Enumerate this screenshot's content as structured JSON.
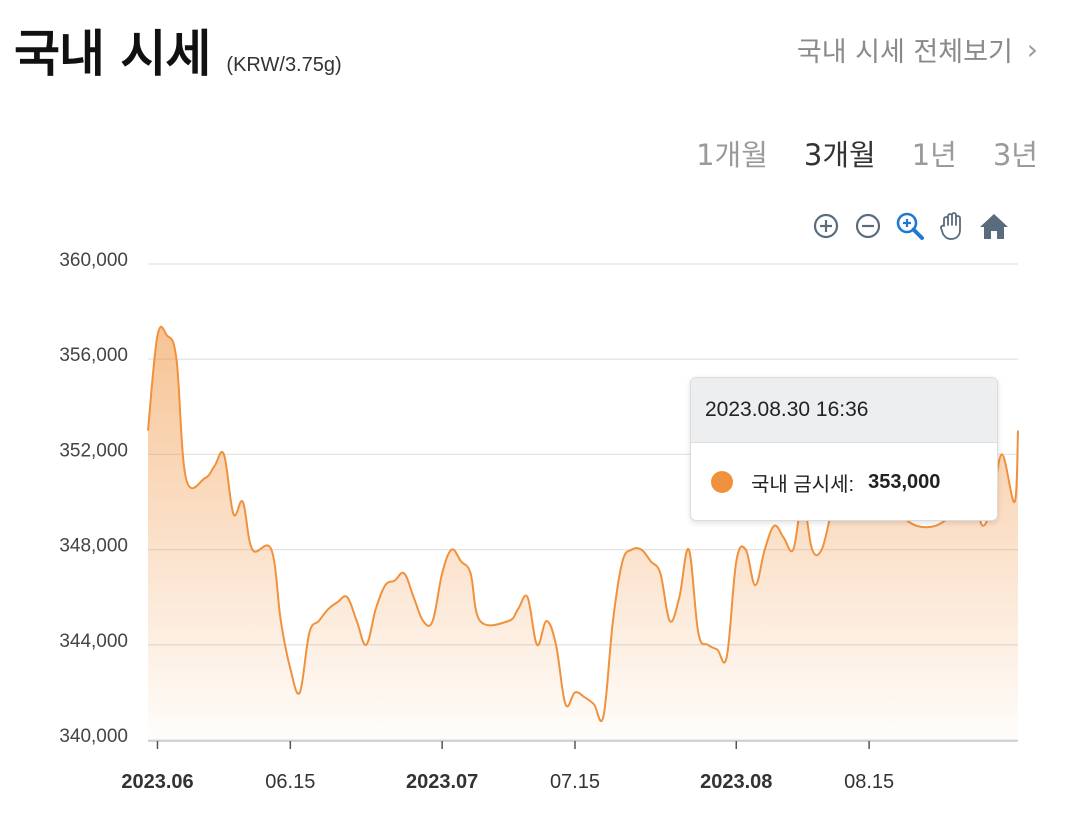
{
  "header": {
    "title": "국내 시세",
    "unit": "(KRW/3.75g)",
    "view_all": "국내 시세 전체보기"
  },
  "periods": [
    {
      "label": "1개월",
      "active": false
    },
    {
      "label": "3개월",
      "active": true
    },
    {
      "label": "1년",
      "active": false
    },
    {
      "label": "3년",
      "active": false
    }
  ],
  "toolbar": [
    "zoom-in-icon",
    "zoom-out-icon",
    "zoom-select-icon",
    "pan-hand-icon",
    "home-icon"
  ],
  "colors": {
    "accent": "#f0923d",
    "grid": "#e4e4e4",
    "zoom_active": "#1f78d1",
    "toolbar": "#5a6b7d"
  },
  "tooltip": {
    "date": "2023.08.30 16:36",
    "label": "국내 금시세:",
    "value": "353,000"
  },
  "chart_data": {
    "type": "area",
    "title": "",
    "xlabel": "",
    "ylabel": "",
    "ylim": [
      340000,
      360000
    ],
    "yticks": [
      "340,000",
      "344,000",
      "348,000",
      "352,000",
      "356,000",
      "360,000"
    ],
    "ytick_values": [
      340000,
      344000,
      348000,
      352000,
      356000,
      360000
    ],
    "xticks": [
      {
        "label": "2023.06",
        "date": "2023-06-01",
        "bold": true
      },
      {
        "label": "06.15",
        "date": "2023-06-15",
        "bold": false
      },
      {
        "label": "2023.07",
        "date": "2023-07-01",
        "bold": true
      },
      {
        "label": "07.15",
        "date": "2023-07-15",
        "bold": false
      },
      {
        "label": "2023.08",
        "date": "2023-08-01",
        "bold": true
      },
      {
        "label": "08.15",
        "date": "2023-08-15",
        "bold": false
      }
    ],
    "x_start": "2023-05-31",
    "x_end": "2023-08-30 16:36",
    "grid": true,
    "series": [
      {
        "name": "국내 금시세",
        "points": [
          [
            "2023-05-31",
            353000
          ],
          [
            "2023-06-01",
            357000
          ],
          [
            "2023-06-02",
            357000
          ],
          [
            "2023-06-03",
            356000
          ],
          [
            "2023-06-04",
            351000
          ],
          [
            "2023-06-06",
            351000
          ],
          [
            "2023-06-07",
            351500
          ],
          [
            "2023-06-08",
            352000
          ],
          [
            "2023-06-09",
            349500
          ],
          [
            "2023-06-10",
            350000
          ],
          [
            "2023-06-11",
            348000
          ],
          [
            "2023-06-13",
            348000
          ],
          [
            "2023-06-14",
            345000
          ],
          [
            "2023-06-15",
            343000
          ],
          [
            "2023-06-16",
            342000
          ],
          [
            "2023-06-17",
            344500
          ],
          [
            "2023-06-18",
            345000
          ],
          [
            "2023-06-19",
            345500
          ],
          [
            "2023-06-20",
            345800
          ],
          [
            "2023-06-21",
            346000
          ],
          [
            "2023-06-22",
            345000
          ],
          [
            "2023-06-23",
            344000
          ],
          [
            "2023-06-24",
            345500
          ],
          [
            "2023-06-25",
            346500
          ],
          [
            "2023-06-26",
            346700
          ],
          [
            "2023-06-27",
            347000
          ],
          [
            "2023-06-28",
            346000
          ],
          [
            "2023-06-29",
            345000
          ],
          [
            "2023-06-30",
            345000
          ],
          [
            "2023-07-01",
            347000
          ],
          [
            "2023-07-02",
            348000
          ],
          [
            "2023-07-03",
            347500
          ],
          [
            "2023-07-04",
            347000
          ],
          [
            "2023-07-05",
            345000
          ],
          [
            "2023-07-08",
            345000
          ],
          [
            "2023-07-09",
            345500
          ],
          [
            "2023-07-10",
            346000
          ],
          [
            "2023-07-11",
            344000
          ],
          [
            "2023-07-12",
            345000
          ],
          [
            "2023-07-13",
            344000
          ],
          [
            "2023-07-14",
            341500
          ],
          [
            "2023-07-15",
            342000
          ],
          [
            "2023-07-16",
            341800
          ],
          [
            "2023-07-17",
            341500
          ],
          [
            "2023-07-18",
            341000
          ],
          [
            "2023-07-19",
            345000
          ],
          [
            "2023-07-20",
            347500
          ],
          [
            "2023-07-21",
            348000
          ],
          [
            "2023-07-22",
            348000
          ],
          [
            "2023-07-23",
            347500
          ],
          [
            "2023-07-24",
            347000
          ],
          [
            "2023-07-25",
            345000
          ],
          [
            "2023-07-26",
            346000
          ],
          [
            "2023-07-27",
            348000
          ],
          [
            "2023-07-28",
            344500
          ],
          [
            "2023-07-29",
            344000
          ],
          [
            "2023-07-30",
            343800
          ],
          [
            "2023-07-31",
            343500
          ],
          [
            "2023-08-01",
            347500
          ],
          [
            "2023-08-02",
            348000
          ],
          [
            "2023-08-03",
            346500
          ],
          [
            "2023-08-04",
            348000
          ],
          [
            "2023-08-05",
            349000
          ],
          [
            "2023-08-06",
            348500
          ],
          [
            "2023-08-07",
            348000
          ],
          [
            "2023-08-08",
            350000
          ],
          [
            "2023-08-09",
            348000
          ],
          [
            "2023-08-10",
            348000
          ],
          [
            "2023-08-11",
            349500
          ],
          [
            "2023-08-12",
            350500
          ],
          [
            "2023-08-13",
            351000
          ],
          [
            "2023-08-14",
            351500
          ],
          [
            "2023-08-16",
            350000
          ],
          [
            "2023-08-18",
            349500
          ],
          [
            "2023-08-20",
            349000
          ],
          [
            "2023-08-22",
            349000
          ],
          [
            "2023-08-24",
            349500
          ],
          [
            "2023-08-26",
            350000
          ],
          [
            "2023-08-27",
            349000
          ],
          [
            "2023-08-28",
            350000
          ],
          [
            "2023-08-29",
            352000
          ],
          [
            "2023-08-30 08:00",
            350000
          ],
          [
            "2023-08-30 16:36",
            353000
          ]
        ]
      }
    ]
  }
}
